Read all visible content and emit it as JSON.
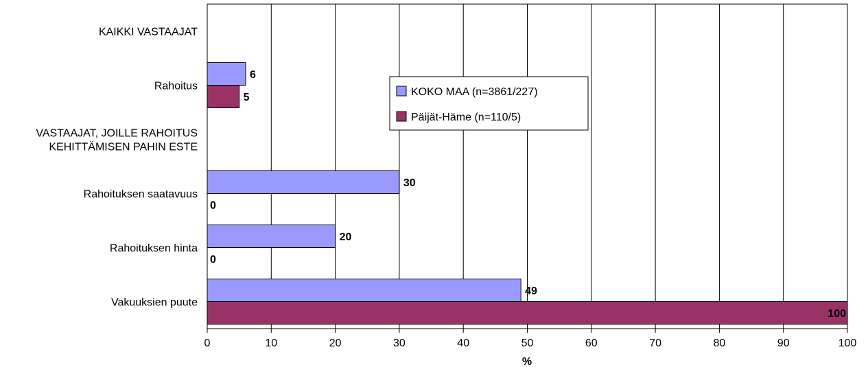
{
  "chart_data": {
    "type": "bar",
    "orientation": "horizontal",
    "categories": [
      [
        "KAIKKI VASTAAJAT"
      ],
      [
        "Rahoitus"
      ],
      [
        "VASTAAJAT, JOILLE RAHOITUS",
        "KEHITTÄMISEN PAHIN ESTE"
      ],
      [
        "Rahoituksen saatavuus"
      ],
      [
        "Rahoituksen hinta"
      ],
      [
        "Vakuuksien puute"
      ]
    ],
    "series": [
      {
        "name": "KOKO MAA (n=3861/227)",
        "color": "#9999FF",
        "values": [
          null,
          6,
          null,
          30,
          20,
          49
        ]
      },
      {
        "name": "Päijät-Häme (n=110/5)",
        "color": "#993366",
        "values": [
          null,
          5,
          null,
          0,
          0,
          100
        ]
      }
    ],
    "xlabel": "%",
    "xlim": [
      0,
      100
    ],
    "xticks": [
      "0",
      "10",
      "20",
      "30",
      "40",
      "50",
      "60",
      "70",
      "80",
      "90",
      "100"
    ],
    "grid": "vertical",
    "legend_position": "inside-center"
  }
}
